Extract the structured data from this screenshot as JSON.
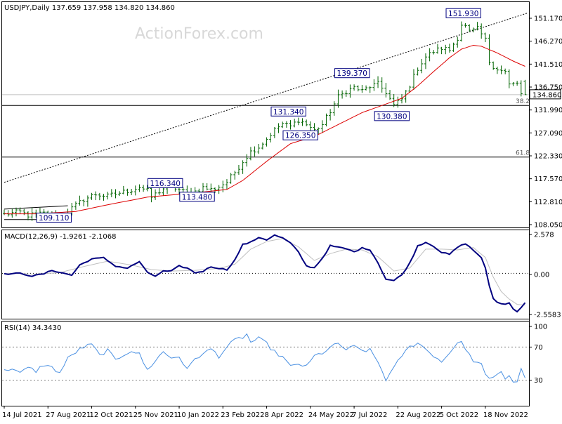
{
  "chart_data": {
    "type": "ohlc",
    "symbol_header": "USDJPY,Daily  137.659 137.958 134.820 134.860",
    "watermark": "ActionForex.com",
    "colors": {
      "price": "#006400",
      "ma": "#dd0000",
      "macd_main": "#000080",
      "macd_signal": "#c0c0c0",
      "rsi": "#4a90e2",
      "level": "#000000",
      "label": "#000080"
    },
    "main": {
      "ylim": [
        107.2,
        154.1
      ],
      "yticks": [
        "151.170",
        "146.270",
        "141.510",
        "136.750",
        "131.990",
        "127.090",
        "122.330",
        "117.570",
        "112.810",
        "108.050"
      ],
      "current_price": "134.860",
      "open": 137.659,
      "high": 137.958,
      "low": 134.82,
      "close": 134.86,
      "fib_levels": [
        {
          "label": "38.2",
          "price": 132.6
        },
        {
          "label": "61.8",
          "price": 121.8
        }
      ],
      "trendline": {
        "from": [
          0,
          116.5
        ],
        "to": [
          131.5,
          151.93
        ]
      },
      "channel_lines": [
        {
          "from": [
            0,
            110.9
          ],
          "to": [
            16,
            111.6
          ]
        },
        {
          "from": [
            0,
            108.7
          ],
          "to": [
            16,
            108.7
          ]
        }
      ],
      "annotations": [
        {
          "text": "151.930",
          "bar": 115.5,
          "price": 151.93
        },
        {
          "text": "139.370",
          "bar": 87.5,
          "price": 139.37
        },
        {
          "text": "131.340",
          "bar": 71.5,
          "price": 131.34
        },
        {
          "text": "130.380",
          "bar": 97.5,
          "price": 130.38
        },
        {
          "text": "126.350",
          "bar": 74.5,
          "price": 126.35
        },
        {
          "text": "116.340",
          "bar": 40.5,
          "price": 116.34
        },
        {
          "text": "113.480",
          "bar": 48.5,
          "price": 113.48
        },
        {
          "text": "109.110",
          "bar": 12.5,
          "price": 109.11
        }
      ],
      "anchors": [
        [
          0,
          109.8
        ],
        [
          4,
          110.3
        ],
        [
          6,
          109.6
        ],
        [
          10,
          110.0
        ],
        [
          13,
          109.4
        ],
        [
          16,
          110.4
        ],
        [
          18,
          111.7
        ],
        [
          20,
          112.9
        ],
        [
          23,
          114.0
        ],
        [
          26,
          113.6
        ],
        [
          29,
          114.3
        ],
        [
          32,
          114.9
        ],
        [
          34,
          115.5
        ],
        [
          36,
          114.7
        ],
        [
          37,
          113.4
        ],
        [
          38,
          114.0
        ],
        [
          40,
          115.2
        ],
        [
          42,
          115.6
        ],
        [
          44,
          115.0
        ],
        [
          46,
          114.2
        ],
        [
          48,
          114.6
        ],
        [
          50,
          115.4
        ],
        [
          52,
          115.0
        ],
        [
          54,
          115.6
        ],
        [
          56,
          116.6
        ],
        [
          58,
          118.6
        ],
        [
          60,
          120.9
        ],
        [
          62,
          122.9
        ],
        [
          64,
          123.9
        ],
        [
          66,
          125.6
        ],
        [
          68,
          127.5
        ],
        [
          70,
          128.8
        ],
        [
          72,
          128.2
        ],
        [
          74,
          129.6
        ],
        [
          76,
          128.6
        ],
        [
          78,
          127.4
        ],
        [
          80,
          128.6
        ],
        [
          82,
          131.4
        ],
        [
          84,
          134.4
        ],
        [
          86,
          135.6
        ],
        [
          88,
          136.4
        ],
        [
          90,
          135.6
        ],
        [
          92,
          136.6
        ],
        [
          94,
          137.1
        ],
        [
          96,
          135.4
        ],
        [
          98,
          132.6
        ],
        [
          100,
          133.9
        ],
        [
          102,
          136.9
        ],
        [
          104,
          140.4
        ],
        [
          106,
          142.8
        ],
        [
          108,
          143.9
        ],
        [
          110,
          144.6
        ],
        [
          112,
          144.2
        ],
        [
          114,
          146.8
        ],
        [
          115,
          149.6
        ],
        [
          116,
          149.1
        ],
        [
          117,
          148.0
        ],
        [
          119,
          148.6
        ],
        [
          120,
          147.5
        ],
        [
          121,
          146.3
        ],
        [
          122,
          141.8
        ],
        [
          123,
          140.9
        ],
        [
          124,
          140.3
        ],
        [
          125,
          139.9
        ],
        [
          126,
          139.6
        ],
        [
          127,
          136.9
        ],
        [
          128,
          137.1
        ],
        [
          129,
          137.3
        ],
        [
          130,
          134.9
        ],
        [
          131,
          137.4
        ]
      ],
      "ma_anchors": [
        [
          0,
          109.9
        ],
        [
          8,
          109.9
        ],
        [
          18,
          110.4
        ],
        [
          26,
          111.8
        ],
        [
          36,
          113.4
        ],
        [
          48,
          114.3
        ],
        [
          56,
          115.0
        ],
        [
          60,
          116.9
        ],
        [
          66,
          120.9
        ],
        [
          72,
          124.6
        ],
        [
          78,
          126.1
        ],
        [
          84,
          128.6
        ],
        [
          90,
          131.1
        ],
        [
          96,
          132.9
        ],
        [
          100,
          134.1
        ],
        [
          104,
          136.7
        ],
        [
          108,
          139.7
        ],
        [
          112,
          142.6
        ],
        [
          115,
          144.4
        ],
        [
          118,
          145.2
        ],
        [
          120,
          145.0
        ],
        [
          124,
          143.6
        ],
        [
          128,
          141.9
        ],
        [
          131,
          140.8
        ]
      ]
    },
    "macd": {
      "header": "MACD(12,26,9) -1.9261 -2.1068",
      "ylim": [
        -2.95,
        2.8
      ],
      "yticks": [
        "2.578",
        "0.00",
        "-2.5583"
      ],
      "main_anchors": [
        [
          0,
          -0.05
        ],
        [
          4,
          0.0
        ],
        [
          7,
          -0.18
        ],
        [
          10,
          -0.03
        ],
        [
          12,
          0.2
        ],
        [
          15,
          0.0
        ],
        [
          17,
          -0.12
        ],
        [
          19,
          0.55
        ],
        [
          22,
          0.95
        ],
        [
          25,
          1.02
        ],
        [
          28,
          0.48
        ],
        [
          31,
          0.34
        ],
        [
          34,
          0.78
        ],
        [
          36,
          0.04
        ],
        [
          38,
          -0.18
        ],
        [
          40,
          0.14
        ],
        [
          42,
          0.14
        ],
        [
          44,
          0.48
        ],
        [
          46,
          0.35
        ],
        [
          48,
          0.04
        ],
        [
          50,
          0.14
        ],
        [
          52,
          0.44
        ],
        [
          54,
          0.34
        ],
        [
          56,
          0.24
        ],
        [
          58,
          0.88
        ],
        [
          60,
          1.9
        ],
        [
          62,
          2.05
        ],
        [
          64,
          2.38
        ],
        [
          66,
          2.22
        ],
        [
          68,
          2.52
        ],
        [
          70,
          2.33
        ],
        [
          72,
          2.0
        ],
        [
          74,
          1.4
        ],
        [
          76,
          0.48
        ],
        [
          78,
          0.37
        ],
        [
          80,
          1.0
        ],
        [
          82,
          1.82
        ],
        [
          84,
          1.72
        ],
        [
          86,
          1.62
        ],
        [
          88,
          1.42
        ],
        [
          90,
          1.67
        ],
        [
          92,
          1.57
        ],
        [
          94,
          0.7
        ],
        [
          96,
          -0.38
        ],
        [
          98,
          -0.48
        ],
        [
          100,
          -0.1
        ],
        [
          102,
          0.68
        ],
        [
          104,
          1.82
        ],
        [
          106,
          2.05
        ],
        [
          108,
          1.8
        ],
        [
          110,
          1.38
        ],
        [
          112,
          1.25
        ],
        [
          114,
          1.72
        ],
        [
          116,
          1.97
        ],
        [
          118,
          1.52
        ],
        [
          120,
          1.05
        ],
        [
          121,
          0.34
        ],
        [
          122,
          -0.85
        ],
        [
          123,
          -1.65
        ],
        [
          124,
          -1.92
        ],
        [
          126,
          -2.05
        ],
        [
          127,
          -1.95
        ],
        [
          128,
          -2.35
        ],
        [
          129,
          -2.5
        ],
        [
          130,
          -2.25
        ],
        [
          131,
          -1.93
        ]
      ],
      "signal_anchors": [
        [
          0,
          0.0
        ],
        [
          8,
          -0.05
        ],
        [
          14,
          0.05
        ],
        [
          20,
          0.45
        ],
        [
          26,
          0.8
        ],
        [
          32,
          0.55
        ],
        [
          37,
          0.25
        ],
        [
          42,
          0.15
        ],
        [
          48,
          0.2
        ],
        [
          54,
          0.32
        ],
        [
          58,
          0.6
        ],
        [
          62,
          1.6
        ],
        [
          66,
          2.1
        ],
        [
          70,
          2.3
        ],
        [
          74,
          1.75
        ],
        [
          78,
          0.85
        ],
        [
          82,
          1.3
        ],
        [
          86,
          1.6
        ],
        [
          90,
          1.55
        ],
        [
          94,
          1.1
        ],
        [
          98,
          0.15
        ],
        [
          102,
          0.35
        ],
        [
          106,
          1.6
        ],
        [
          110,
          1.6
        ],
        [
          114,
          1.55
        ],
        [
          118,
          1.7
        ],
        [
          121,
          1.05
        ],
        [
          123,
          -0.25
        ],
        [
          125,
          -1.2
        ],
        [
          127,
          -1.7
        ],
        [
          129,
          -2.05
        ],
        [
          131,
          -2.1
        ]
      ]
    },
    "rsi": {
      "header": "RSI(14) 34.3430",
      "ylim": [
        0,
        100
      ],
      "yticks": [
        "100",
        "70",
        "30"
      ],
      "levels": [
        70,
        30
      ],
      "anchors": [
        [
          0,
          41
        ],
        [
          2,
          45
        ],
        [
          4,
          38
        ],
        [
          6,
          45
        ],
        [
          8,
          41
        ],
        [
          10,
          49
        ],
        [
          12,
          45
        ],
        [
          14,
          39
        ],
        [
          16,
          56
        ],
        [
          18,
          64
        ],
        [
          20,
          70
        ],
        [
          22,
          73
        ],
        [
          24,
          60
        ],
        [
          26,
          66
        ],
        [
          28,
          54
        ],
        [
          30,
          61
        ],
        [
          32,
          66
        ],
        [
          34,
          61
        ],
        [
          36,
          42
        ],
        [
          38,
          54
        ],
        [
          40,
          64
        ],
        [
          42,
          57
        ],
        [
          44,
          59
        ],
        [
          46,
          42
        ],
        [
          48,
          57
        ],
        [
          50,
          61
        ],
        [
          52,
          68
        ],
        [
          54,
          59
        ],
        [
          56,
          70
        ],
        [
          58,
          78
        ],
        [
          60,
          82
        ],
        [
          61,
          85
        ],
        [
          62,
          76
        ],
        [
          64,
          80
        ],
        [
          66,
          74
        ],
        [
          68,
          64
        ],
        [
          70,
          58
        ],
        [
          72,
          46
        ],
        [
          74,
          50
        ],
        [
          76,
          46
        ],
        [
          78,
          59
        ],
        [
          80,
          63
        ],
        [
          82,
          69
        ],
        [
          84,
          74
        ],
        [
          86,
          67
        ],
        [
          88,
          70
        ],
        [
          90,
          66
        ],
        [
          92,
          66
        ],
        [
          94,
          52
        ],
        [
          96,
          31
        ],
        [
          98,
          44
        ],
        [
          100,
          60
        ],
        [
          102,
          70
        ],
        [
          104,
          76
        ],
        [
          106,
          67
        ],
        [
          108,
          60
        ],
        [
          110,
          52
        ],
        [
          112,
          64
        ],
        [
          114,
          73
        ],
        [
          115,
          79
        ],
        [
          116,
          66
        ],
        [
          118,
          54
        ],
        [
          120,
          48
        ],
        [
          121,
          36
        ],
        [
          122,
          31
        ],
        [
          124,
          38
        ],
        [
          125,
          41
        ],
        [
          126,
          32
        ],
        [
          127,
          36
        ],
        [
          128,
          26
        ],
        [
          129,
          30
        ],
        [
          130,
          42
        ],
        [
          131,
          34
        ]
      ]
    },
    "x_tick_labels": [
      {
        "bar": 0,
        "label": "14 Jul 2021"
      },
      {
        "bar": 11,
        "label": "27 Aug 2021"
      },
      {
        "bar": 22,
        "label": "12 Oct 2021"
      },
      {
        "bar": 33,
        "label": "25 Nov 2021"
      },
      {
        "bar": 44,
        "label": "10 Jan 2022"
      },
      {
        "bar": 55,
        "label": "23 Feb 2022"
      },
      {
        "bar": 66,
        "label": "8 Apr 2022"
      },
      {
        "bar": 77,
        "label": "24 May 2022"
      },
      {
        "bar": 88,
        "label": "7 Jul 2022"
      },
      {
        "bar": 99,
        "label": "22 Aug 2022"
      },
      {
        "bar": 110,
        "label": "5 Oct 2022"
      },
      {
        "bar": 121,
        "label": "18 Nov 2022"
      }
    ]
  }
}
